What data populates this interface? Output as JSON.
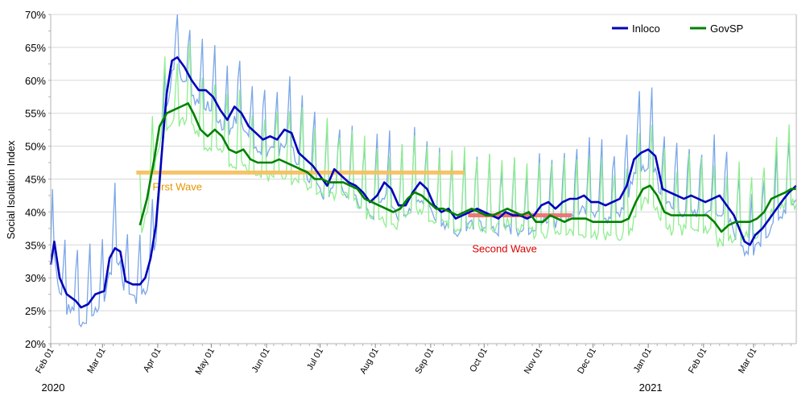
{
  "chart_data": {
    "type": "line",
    "ylabel": "Social Isolation Index",
    "xlabel": "",
    "ylim": [
      20,
      70
    ],
    "y_ticks": [
      20,
      25,
      30,
      35,
      40,
      45,
      50,
      55,
      60,
      65,
      70
    ],
    "y_tick_format": "{v}%",
    "x_range": [
      "2020-02-01",
      "2021-03-25"
    ],
    "x_tick_labels": [
      {
        "date": "2020-02-01",
        "label": "Feb 01"
      },
      {
        "date": "2020-03-01",
        "label": "Mar 01"
      },
      {
        "date": "2020-04-01",
        "label": "Apr 01"
      },
      {
        "date": "2020-05-01",
        "label": "May 01"
      },
      {
        "date": "2020-06-01",
        "label": "Jun 01"
      },
      {
        "date": "2020-07-01",
        "label": "Jul 01"
      },
      {
        "date": "2020-08-01",
        "label": "Aug 01"
      },
      {
        "date": "2020-09-01",
        "label": "Sep 01"
      },
      {
        "date": "2020-10-01",
        "label": "Oct 01"
      },
      {
        "date": "2020-11-01",
        "label": "Nov 01"
      },
      {
        "date": "2020-12-01",
        "label": "Dec 01"
      },
      {
        "date": "2021-01-01",
        "label": "Jan 01"
      },
      {
        "date": "2021-02-01",
        "label": "Feb 01"
      },
      {
        "date": "2021-03-01",
        "label": "Mar 01"
      }
    ],
    "year_labels": [
      {
        "date": "2020-02-01",
        "label": "2020"
      },
      {
        "date": "2021-01-01",
        "label": "2021"
      }
    ],
    "grid": true,
    "legend": {
      "placement": "top-right"
    },
    "series": [
      {
        "name": "Inloco",
        "color": "#0000bb",
        "raw_color": "#7ba7e8",
        "points": [
          [
            "2020-02-01",
            32.0
          ],
          [
            "2020-02-03",
            35.5
          ],
          [
            "2020-02-06",
            30.0
          ],
          [
            "2020-02-10",
            27.5
          ],
          [
            "2020-02-15",
            26.5
          ],
          [
            "2020-02-18",
            25.5
          ],
          [
            "2020-02-22",
            26.0
          ],
          [
            "2020-02-26",
            27.5
          ],
          [
            "2020-03-02",
            28.0
          ],
          [
            "2020-03-05",
            33.0
          ],
          [
            "2020-03-08",
            34.5
          ],
          [
            "2020-03-11",
            34.0
          ],
          [
            "2020-03-14",
            29.5
          ],
          [
            "2020-03-18",
            29.0
          ],
          [
            "2020-03-22",
            29.0
          ],
          [
            "2020-03-25",
            30.0
          ],
          [
            "2020-03-28",
            33.0
          ],
          [
            "2020-03-31",
            38.0
          ],
          [
            "2020-04-03",
            48.0
          ],
          [
            "2020-04-06",
            58.0
          ],
          [
            "2020-04-09",
            63.0
          ],
          [
            "2020-04-12",
            63.5
          ],
          [
            "2020-04-16",
            62.0
          ],
          [
            "2020-04-20",
            60.0
          ],
          [
            "2020-04-24",
            58.5
          ],
          [
            "2020-04-28",
            58.5
          ],
          [
            "2020-05-02",
            57.5
          ],
          [
            "2020-05-06",
            55.5
          ],
          [
            "2020-05-10",
            54.0
          ],
          [
            "2020-05-14",
            56.0
          ],
          [
            "2020-05-18",
            55.0
          ],
          [
            "2020-05-22",
            53.0
          ],
          [
            "2020-05-26",
            52.0
          ],
          [
            "2020-05-30",
            51.0
          ],
          [
            "2020-06-03",
            51.5
          ],
          [
            "2020-06-07",
            51.0
          ],
          [
            "2020-06-11",
            52.5
          ],
          [
            "2020-06-15",
            52.0
          ],
          [
            "2020-06-19",
            49.0
          ],
          [
            "2020-06-23",
            48.0
          ],
          [
            "2020-06-27",
            47.0
          ],
          [
            "2020-07-01",
            45.5
          ],
          [
            "2020-07-05",
            44.0
          ],
          [
            "2020-07-09",
            46.5
          ],
          [
            "2020-07-13",
            45.5
          ],
          [
            "2020-07-17",
            44.5
          ],
          [
            "2020-07-21",
            44.0
          ],
          [
            "2020-07-25",
            43.0
          ],
          [
            "2020-07-29",
            41.5
          ],
          [
            "2020-08-02",
            42.5
          ],
          [
            "2020-08-06",
            44.5
          ],
          [
            "2020-08-10",
            43.5
          ],
          [
            "2020-08-14",
            41.0
          ],
          [
            "2020-08-18",
            41.0
          ],
          [
            "2020-08-22",
            43.0
          ],
          [
            "2020-08-26",
            44.5
          ],
          [
            "2020-08-30",
            43.5
          ],
          [
            "2020-09-03",
            41.0
          ],
          [
            "2020-09-07",
            40.0
          ],
          [
            "2020-09-11",
            40.5
          ],
          [
            "2020-09-15",
            39.0
          ],
          [
            "2020-09-19",
            39.5
          ],
          [
            "2020-09-23",
            40.0
          ],
          [
            "2020-09-27",
            40.5
          ],
          [
            "2020-10-01",
            40.0
          ],
          [
            "2020-10-05",
            39.5
          ],
          [
            "2020-10-09",
            39.0
          ],
          [
            "2020-10-13",
            40.0
          ],
          [
            "2020-10-17",
            39.5
          ],
          [
            "2020-10-21",
            39.5
          ],
          [
            "2020-10-25",
            39.0
          ],
          [
            "2020-10-29",
            39.5
          ],
          [
            "2020-11-02",
            41.0
          ],
          [
            "2020-11-06",
            41.5
          ],
          [
            "2020-11-10",
            40.5
          ],
          [
            "2020-11-14",
            41.5
          ],
          [
            "2020-11-18",
            42.0
          ],
          [
            "2020-11-22",
            42.0
          ],
          [
            "2020-11-26",
            42.5
          ],
          [
            "2020-11-30",
            41.5
          ],
          [
            "2020-12-04",
            41.5
          ],
          [
            "2020-12-08",
            41.0
          ],
          [
            "2020-12-12",
            41.5
          ],
          [
            "2020-12-16",
            42.0
          ],
          [
            "2020-12-20",
            44.0
          ],
          [
            "2020-12-24",
            48.0
          ],
          [
            "2020-12-28",
            49.0
          ],
          [
            "2021-01-01",
            49.5
          ],
          [
            "2021-01-05",
            48.5
          ],
          [
            "2021-01-09",
            43.5
          ],
          [
            "2021-01-13",
            43.0
          ],
          [
            "2021-01-17",
            42.5
          ],
          [
            "2021-01-21",
            42.0
          ],
          [
            "2021-01-25",
            42.5
          ],
          [
            "2021-01-29",
            42.0
          ],
          [
            "2021-02-02",
            41.5
          ],
          [
            "2021-02-06",
            42.0
          ],
          [
            "2021-02-10",
            42.5
          ],
          [
            "2021-02-14",
            41.0
          ],
          [
            "2021-02-18",
            39.5
          ],
          [
            "2021-02-21",
            37.5
          ],
          [
            "2021-02-24",
            35.5
          ],
          [
            "2021-02-27",
            35.0
          ],
          [
            "2021-03-02",
            36.5
          ],
          [
            "2021-03-06",
            37.5
          ],
          [
            "2021-03-10",
            39.0
          ],
          [
            "2021-03-14",
            40.5
          ],
          [
            "2021-03-18",
            42.0
          ],
          [
            "2021-03-21",
            43.0
          ],
          [
            "2021-03-25",
            44.0
          ]
        ]
      },
      {
        "name": "GovSP",
        "color": "#008000",
        "raw_color": "#90ee90",
        "points": [
          [
            "2020-03-22",
            38.0
          ],
          [
            "2020-03-26",
            42.0
          ],
          [
            "2020-03-30",
            48.0
          ],
          [
            "2020-04-02",
            53.0
          ],
          [
            "2020-04-06",
            55.0
          ],
          [
            "2020-04-10",
            55.5
          ],
          [
            "2020-04-14",
            56.0
          ],
          [
            "2020-04-18",
            56.5
          ],
          [
            "2020-04-21",
            55.0
          ],
          [
            "2020-04-25",
            52.5
          ],
          [
            "2020-04-29",
            51.5
          ],
          [
            "2020-05-03",
            52.5
          ],
          [
            "2020-05-07",
            51.5
          ],
          [
            "2020-05-11",
            49.5
          ],
          [
            "2020-05-15",
            49.0
          ],
          [
            "2020-05-19",
            49.5
          ],
          [
            "2020-05-23",
            48.0
          ],
          [
            "2020-05-27",
            47.5
          ],
          [
            "2020-05-31",
            47.5
          ],
          [
            "2020-06-04",
            47.5
          ],
          [
            "2020-06-08",
            48.0
          ],
          [
            "2020-06-12",
            47.5
          ],
          [
            "2020-06-16",
            47.0
          ],
          [
            "2020-06-20",
            46.5
          ],
          [
            "2020-06-24",
            46.0
          ],
          [
            "2020-06-28",
            45.0
          ],
          [
            "2020-07-02",
            45.0
          ],
          [
            "2020-07-06",
            44.5
          ],
          [
            "2020-07-10",
            44.5
          ],
          [
            "2020-07-14",
            44.5
          ],
          [
            "2020-07-18",
            44.0
          ],
          [
            "2020-07-22",
            43.5
          ],
          [
            "2020-07-26",
            42.0
          ],
          [
            "2020-07-30",
            41.5
          ],
          [
            "2020-08-03",
            41.0
          ],
          [
            "2020-08-07",
            40.5
          ],
          [
            "2020-08-11",
            40.0
          ],
          [
            "2020-08-15",
            40.5
          ],
          [
            "2020-08-19",
            42.0
          ],
          [
            "2020-08-23",
            43.0
          ],
          [
            "2020-08-27",
            42.5
          ],
          [
            "2020-08-31",
            41.5
          ],
          [
            "2020-09-04",
            40.5
          ],
          [
            "2020-09-08",
            40.5
          ],
          [
            "2020-09-12",
            40.0
          ],
          [
            "2020-09-16",
            39.5
          ],
          [
            "2020-09-20",
            40.0
          ],
          [
            "2020-09-24",
            40.5
          ],
          [
            "2020-09-28",
            40.0
          ],
          [
            "2020-10-02",
            39.5
          ],
          [
            "2020-10-06",
            39.5
          ],
          [
            "2020-10-10",
            40.0
          ],
          [
            "2020-10-14",
            40.5
          ],
          [
            "2020-10-18",
            40.0
          ],
          [
            "2020-10-22",
            39.5
          ],
          [
            "2020-10-26",
            40.0
          ],
          [
            "2020-10-30",
            38.5
          ],
          [
            "2020-11-03",
            38.5
          ],
          [
            "2020-11-07",
            39.5
          ],
          [
            "2020-11-11",
            39.0
          ],
          [
            "2020-11-15",
            38.5
          ],
          [
            "2020-11-19",
            39.0
          ],
          [
            "2020-11-23",
            39.0
          ],
          [
            "2020-11-27",
            39.0
          ],
          [
            "2020-12-01",
            38.5
          ],
          [
            "2020-12-05",
            38.5
          ],
          [
            "2020-12-09",
            38.5
          ],
          [
            "2020-12-13",
            38.5
          ],
          [
            "2020-12-17",
            38.5
          ],
          [
            "2020-12-21",
            39.0
          ],
          [
            "2020-12-25",
            41.5
          ],
          [
            "2020-12-29",
            43.5
          ],
          [
            "2021-01-02",
            44.0
          ],
          [
            "2021-01-06",
            42.5
          ],
          [
            "2021-01-10",
            40.0
          ],
          [
            "2021-01-14",
            39.5
          ],
          [
            "2021-01-18",
            39.5
          ],
          [
            "2021-01-22",
            39.5
          ],
          [
            "2021-01-26",
            39.5
          ],
          [
            "2021-01-30",
            39.5
          ],
          [
            "2021-02-03",
            39.5
          ],
          [
            "2021-02-07",
            38.5
          ],
          [
            "2021-02-11",
            37.0
          ],
          [
            "2021-02-15",
            38.0
          ],
          [
            "2021-02-19",
            38.5
          ],
          [
            "2021-02-23",
            38.5
          ],
          [
            "2021-02-27",
            38.5
          ],
          [
            "2021-03-03",
            39.0
          ],
          [
            "2021-03-07",
            40.0
          ],
          [
            "2021-03-11",
            42.0
          ],
          [
            "2021-03-15",
            42.5
          ],
          [
            "2021-03-19",
            43.0
          ],
          [
            "2021-03-22",
            43.5
          ],
          [
            "2021-03-25",
            43.5
          ]
        ]
      }
    ],
    "annotations": [
      {
        "label": "First Wave",
        "start": "2020-03-20",
        "end": "2020-09-20",
        "y": 46.0,
        "color": "#f5c060",
        "text_color": "#e69500"
      },
      {
        "label": "Second Wave",
        "start": "2020-09-22",
        "end": "2020-11-19",
        "y": 39.5,
        "color": "#f07070",
        "text_color": "#dd0000"
      }
    ]
  }
}
